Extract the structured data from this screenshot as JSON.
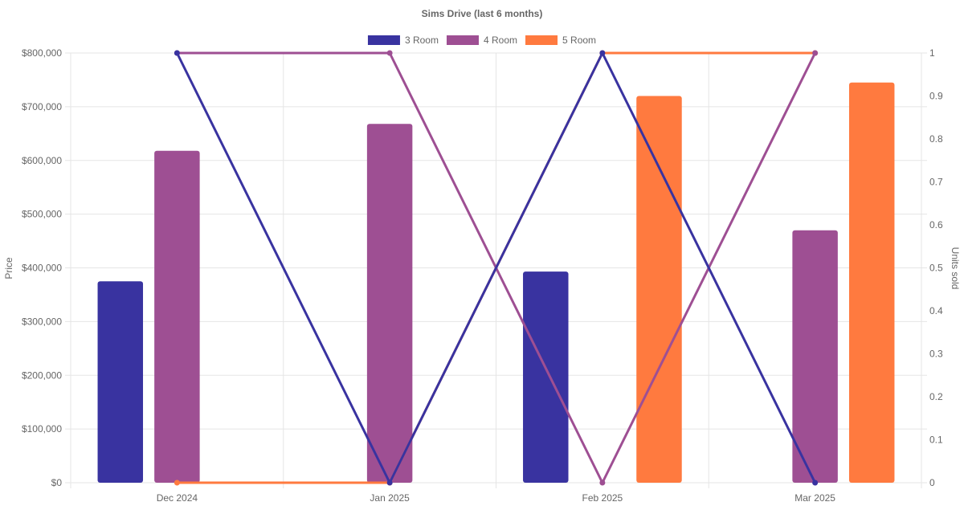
{
  "chart_data": {
    "type": "bar",
    "title": "Sims Drive (last 6 months)",
    "categories": [
      "Dec 2024",
      "Jan 2025",
      "Feb 2025",
      "Mar 2025"
    ],
    "y_left": {
      "label": "Price",
      "ylim": [
        0,
        800000
      ],
      "ticks": [
        "$0",
        "$100,000",
        "$200,000",
        "$300,000",
        "$400,000",
        "$500,000",
        "$600,000",
        "$700,000",
        "$800,000"
      ]
    },
    "y_right": {
      "label": "Units sold",
      "ylim": [
        0,
        1
      ],
      "ticks": [
        "0",
        "0.1",
        "0.2",
        "0.3",
        "0.4",
        "0.5",
        "0.6",
        "0.7",
        "0.8",
        "0.9",
        "1"
      ]
    },
    "legend_position": "top",
    "grid": true,
    "series": [
      {
        "name": "3 Room",
        "color": "#3933a0",
        "bar_values": [
          375000,
          0,
          393000,
          0
        ],
        "line_values": [
          1,
          0,
          1,
          0
        ]
      },
      {
        "name": "4 Room",
        "color": "#9e4f93",
        "bar_values": [
          618000,
          668000,
          0,
          470000
        ],
        "line_values": [
          1,
          1,
          0,
          1
        ]
      },
      {
        "name": "5 Room",
        "color": "#ff7a3f",
        "bar_values": [
          0,
          0,
          720000,
          745000
        ],
        "line_values": [
          0,
          0,
          1,
          1
        ]
      }
    ]
  }
}
